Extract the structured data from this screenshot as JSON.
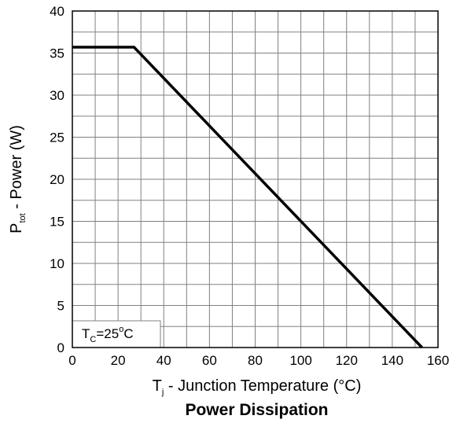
{
  "chart_data": {
    "type": "line",
    "title": "Power Dissipation",
    "xlabel": {
      "main": "T",
      "sub": "j",
      "rest": " - Junction Temperature (°C)"
    },
    "ylabel": {
      "main": "P",
      "sub": "tot",
      "rest": " - Power (W)"
    },
    "xlim": [
      0,
      160
    ],
    "ylim": [
      0,
      40
    ],
    "x_ticks": [
      0,
      20,
      40,
      60,
      80,
      100,
      120,
      140,
      160
    ],
    "y_ticks": [
      0,
      5,
      10,
      15,
      20,
      25,
      30,
      35,
      40
    ],
    "x_minor_step": 10,
    "y_minor_step": 2.5,
    "grid": true,
    "series": [
      {
        "x": [
          0,
          27,
          153
        ],
        "y": [
          35.7,
          35.7,
          0
        ]
      }
    ],
    "annotation": {
      "main": "T",
      "sub": "C",
      "rest": "=25",
      "degree": "o",
      "unit": "C",
      "x": 0,
      "y": 0
    },
    "colors": {
      "line": "#000000",
      "grid": "#808080",
      "frame": "#000000"
    }
  }
}
